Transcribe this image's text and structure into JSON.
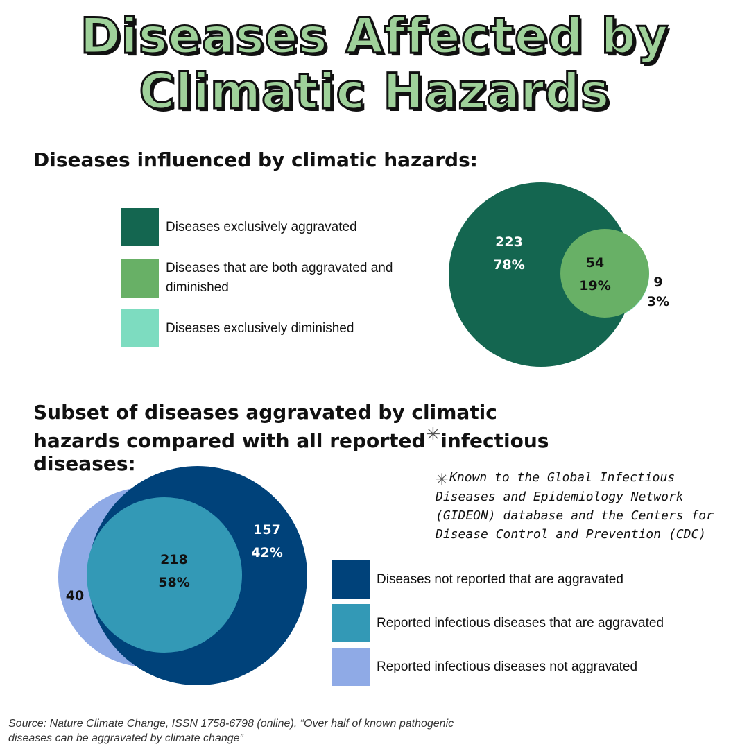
{
  "title": "Diseases Affected by Climatic Hazards",
  "section1": {
    "heading": "Diseases influenced by climatic hazards:",
    "legend": [
      {
        "label": "Diseases exclusively aggravated",
        "color": "#146650"
      },
      {
        "label": "Diseases that are both aggravated and diminished",
        "color": "#68b066"
      },
      {
        "label": "Diseases exclusively diminished",
        "color": "#7ddcc0"
      }
    ]
  },
  "section2": {
    "heading_before": "Subset of diseases aggravated by climatic hazards compared with all reported",
    "asterisk": "✳",
    "heading_after": "infectious diseases:",
    "legend": [
      {
        "label": "Diseases not reported that are aggravated",
        "color": "#00427a"
      },
      {
        "label": "Reported infectious diseases that are aggravated",
        "color": "#3399b6"
      },
      {
        "label": "Reported infectious diseases not aggravated",
        "color": "#8faae6"
      }
    ],
    "note": "Known to the Global Infectious Diseases and Epidemiology Network (GIDEON) database and the Centers for Disease Control and Prevention (CDC)"
  },
  "source": "Source: Nature Climate Change, ISSN 1758-6798 (online), “Over half of known pathogenic diseases can be aggravated by climate change”",
  "chart_data": [
    {
      "type": "venn",
      "title": "Diseases influenced by climatic hazards:",
      "regions": [
        {
          "name": "Diseases exclusively aggravated",
          "count": 223,
          "percent": "78%",
          "color": "#146650"
        },
        {
          "name": "Diseases that are both aggravated and diminished",
          "count": 54,
          "percent": "19%",
          "color": "#68b066"
        },
        {
          "name": "Diseases exclusively diminished",
          "count": 9,
          "percent": "3%",
          "color": "#7ddcc0"
        }
      ]
    },
    {
      "type": "venn",
      "title": "Subset of diseases aggravated by climatic hazards compared with all reported infectious diseases:",
      "regions": [
        {
          "name": "Diseases not reported that are aggravated",
          "count": 157,
          "percent": "42%",
          "color": "#00427a"
        },
        {
          "name": "Reported infectious diseases that are aggravated",
          "count": 218,
          "percent": "58%",
          "color": "#3399b6"
        },
        {
          "name": "Reported infectious diseases not aggravated",
          "count": 40,
          "percent": "",
          "color": "#8faae6"
        }
      ]
    }
  ]
}
